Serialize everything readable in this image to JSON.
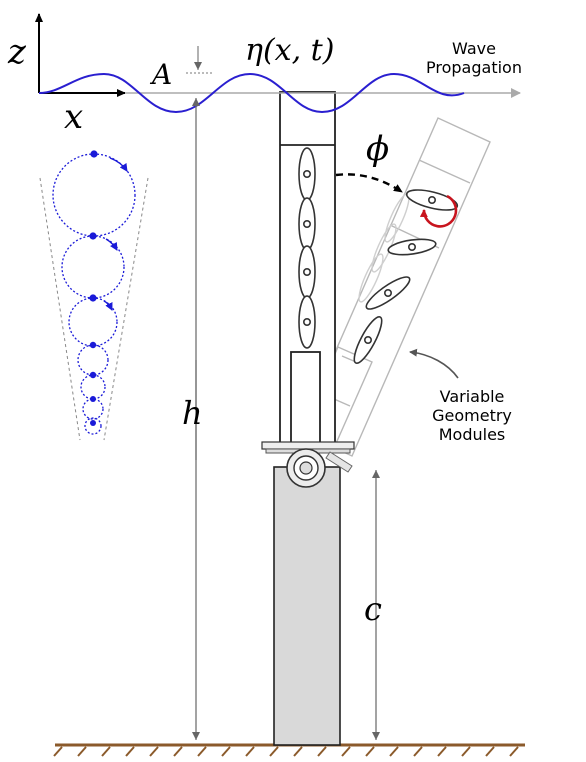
{
  "labels": {
    "z": "z",
    "x": "x",
    "A": "A",
    "eta": "η(x, t)",
    "phi": "ϕ",
    "h": "h",
    "c": "c",
    "wave_line1": "Wave",
    "wave_line2": "Propagation",
    "vgm_line1": "Variable",
    "vgm_line2": "Geometry",
    "vgm_line3": "Modules"
  },
  "colors": {
    "wave": "#2a1fd0",
    "orbit": "#1a1ad8",
    "rotation_arrow": "#c8141e",
    "ground": "#8b5a2b",
    "pedestal_fill": "#d9d9d9",
    "tilted_frame": "#b8b8b8",
    "dimension": "#888888"
  }
}
